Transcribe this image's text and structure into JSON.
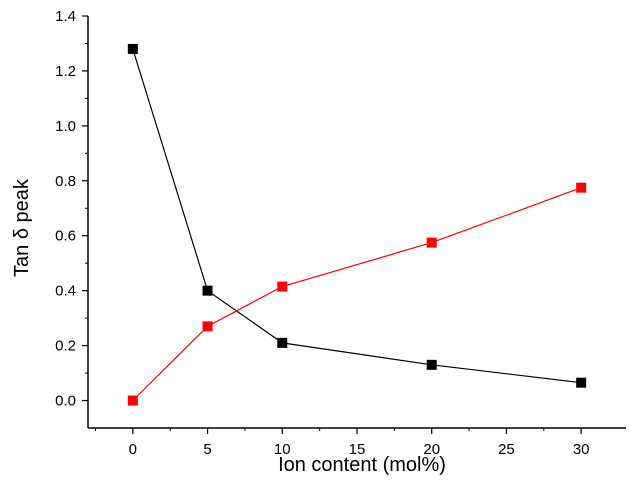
{
  "chart_data": {
    "type": "line",
    "title": "",
    "xlabel": "Ion content (mol%)",
    "ylabel": "Tan δ peak",
    "xlim": [
      -3,
      33
    ],
    "ylim": [
      -0.1,
      1.4
    ],
    "xticks": [
      0,
      5,
      10,
      15,
      20,
      25,
      30
    ],
    "yticks": [
      0.0,
      0.2,
      0.4,
      0.6,
      0.8,
      1.0,
      1.2,
      1.4
    ],
    "grid": false,
    "legend": "none",
    "series": [
      {
        "color": "#000000",
        "marker": "square",
        "x": [
          0,
          5,
          10,
          20,
          30
        ],
        "y": [
          1.28,
          0.4,
          0.21,
          0.13,
          0.065
        ]
      },
      {
        "color": "#ff0000",
        "marker": "square",
        "x": [
          0,
          5,
          10,
          20,
          30
        ],
        "y": [
          0.0,
          0.27,
          0.415,
          0.575,
          0.775
        ]
      }
    ]
  }
}
